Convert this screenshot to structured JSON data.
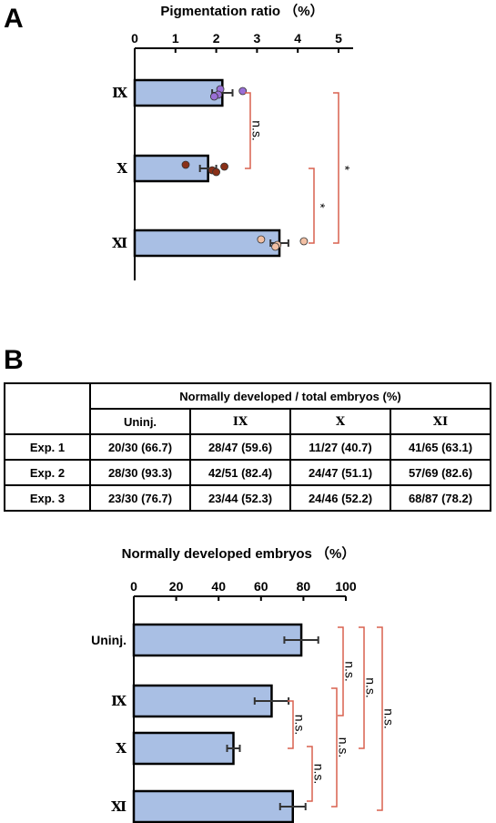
{
  "panel_a": {
    "letter": "A"
  },
  "panel_b": {
    "letter": "B"
  },
  "table": {
    "header": "Normally developed / total embryos (%)",
    "columns": [
      "Uninj.",
      "IX",
      "X",
      "XI"
    ],
    "rows": [
      {
        "label": "Exp. 1",
        "cells": [
          "20/30 (66.7)",
          "28/47 (59.6)",
          "11/27 (40.7)",
          "41/65 (63.1)"
        ]
      },
      {
        "label": "Exp. 2",
        "cells": [
          "28/30 (93.3)",
          "42/51 (82.4)",
          "24/47 (51.1)",
          "57/69 (82.6)"
        ]
      },
      {
        "label": "Exp. 3",
        "cells": [
          "23/30 (76.7)",
          "23/44 (52.3)",
          "24/46 (52.2)",
          "68/87 (78.2)"
        ]
      }
    ]
  },
  "colors": {
    "bar_fill": "#a9bfe4",
    "bracket": "#d9614f",
    "dot_IX": "#9a70d6",
    "dot_X": "#8a3018",
    "dot_XI": "#f2c0a4"
  },
  "chart_data": [
    {
      "type": "bar",
      "orientation": "horizontal",
      "title": "Pigmentation ratio （%）",
      "xlabel": "",
      "ylabel": "",
      "xlim": [
        0,
        5
      ],
      "ticks": [
        "0",
        "1",
        "2",
        "3",
        "4",
        "5"
      ],
      "categories": [
        "IX",
        "X",
        "XI"
      ],
      "values": [
        2.15,
        1.8,
        3.55
      ],
      "errors": [
        0.25,
        0.2,
        0.22
      ],
      "points": [
        [
          2.1,
          2.05,
          2.65,
          1.95
        ],
        [
          1.25,
          1.9,
          2.2,
          2.0
        ],
        [
          3.1,
          3.5,
          4.15,
          3.45
        ]
      ],
      "significance": [
        {
          "pair": [
            "IX",
            "X"
          ],
          "label": "n.s."
        },
        {
          "pair": [
            "X",
            "XI"
          ],
          "label": "*"
        },
        {
          "pair": [
            "IX",
            "XI"
          ],
          "label": "*"
        }
      ]
    },
    {
      "type": "bar",
      "orientation": "horizontal",
      "title": "Normally developed embryos （%）",
      "xlabel": "",
      "ylabel": "",
      "xlim": [
        0,
        100
      ],
      "ticks": [
        "0",
        "20",
        "40",
        "60",
        "80",
        "100"
      ],
      "categories": [
        "Uninj.",
        "IX",
        "X",
        "XI"
      ],
      "values": [
        79,
        65,
        47,
        75
      ],
      "errors": [
        8,
        8,
        3,
        6
      ],
      "significance": [
        {
          "pair": [
            "Uninj.",
            "IX"
          ],
          "label": "n.s."
        },
        {
          "pair": [
            "IX",
            "X"
          ],
          "label": "n.s."
        },
        {
          "pair": [
            "X",
            "XI"
          ],
          "label": "n.s."
        },
        {
          "pair": [
            "IX",
            "XI"
          ],
          "label": "n.s."
        },
        {
          "pair": [
            "Uninj.",
            "X"
          ],
          "label": "n.s."
        },
        {
          "pair": [
            "Uninj.",
            "XI"
          ],
          "label": "n.s."
        }
      ]
    }
  ]
}
